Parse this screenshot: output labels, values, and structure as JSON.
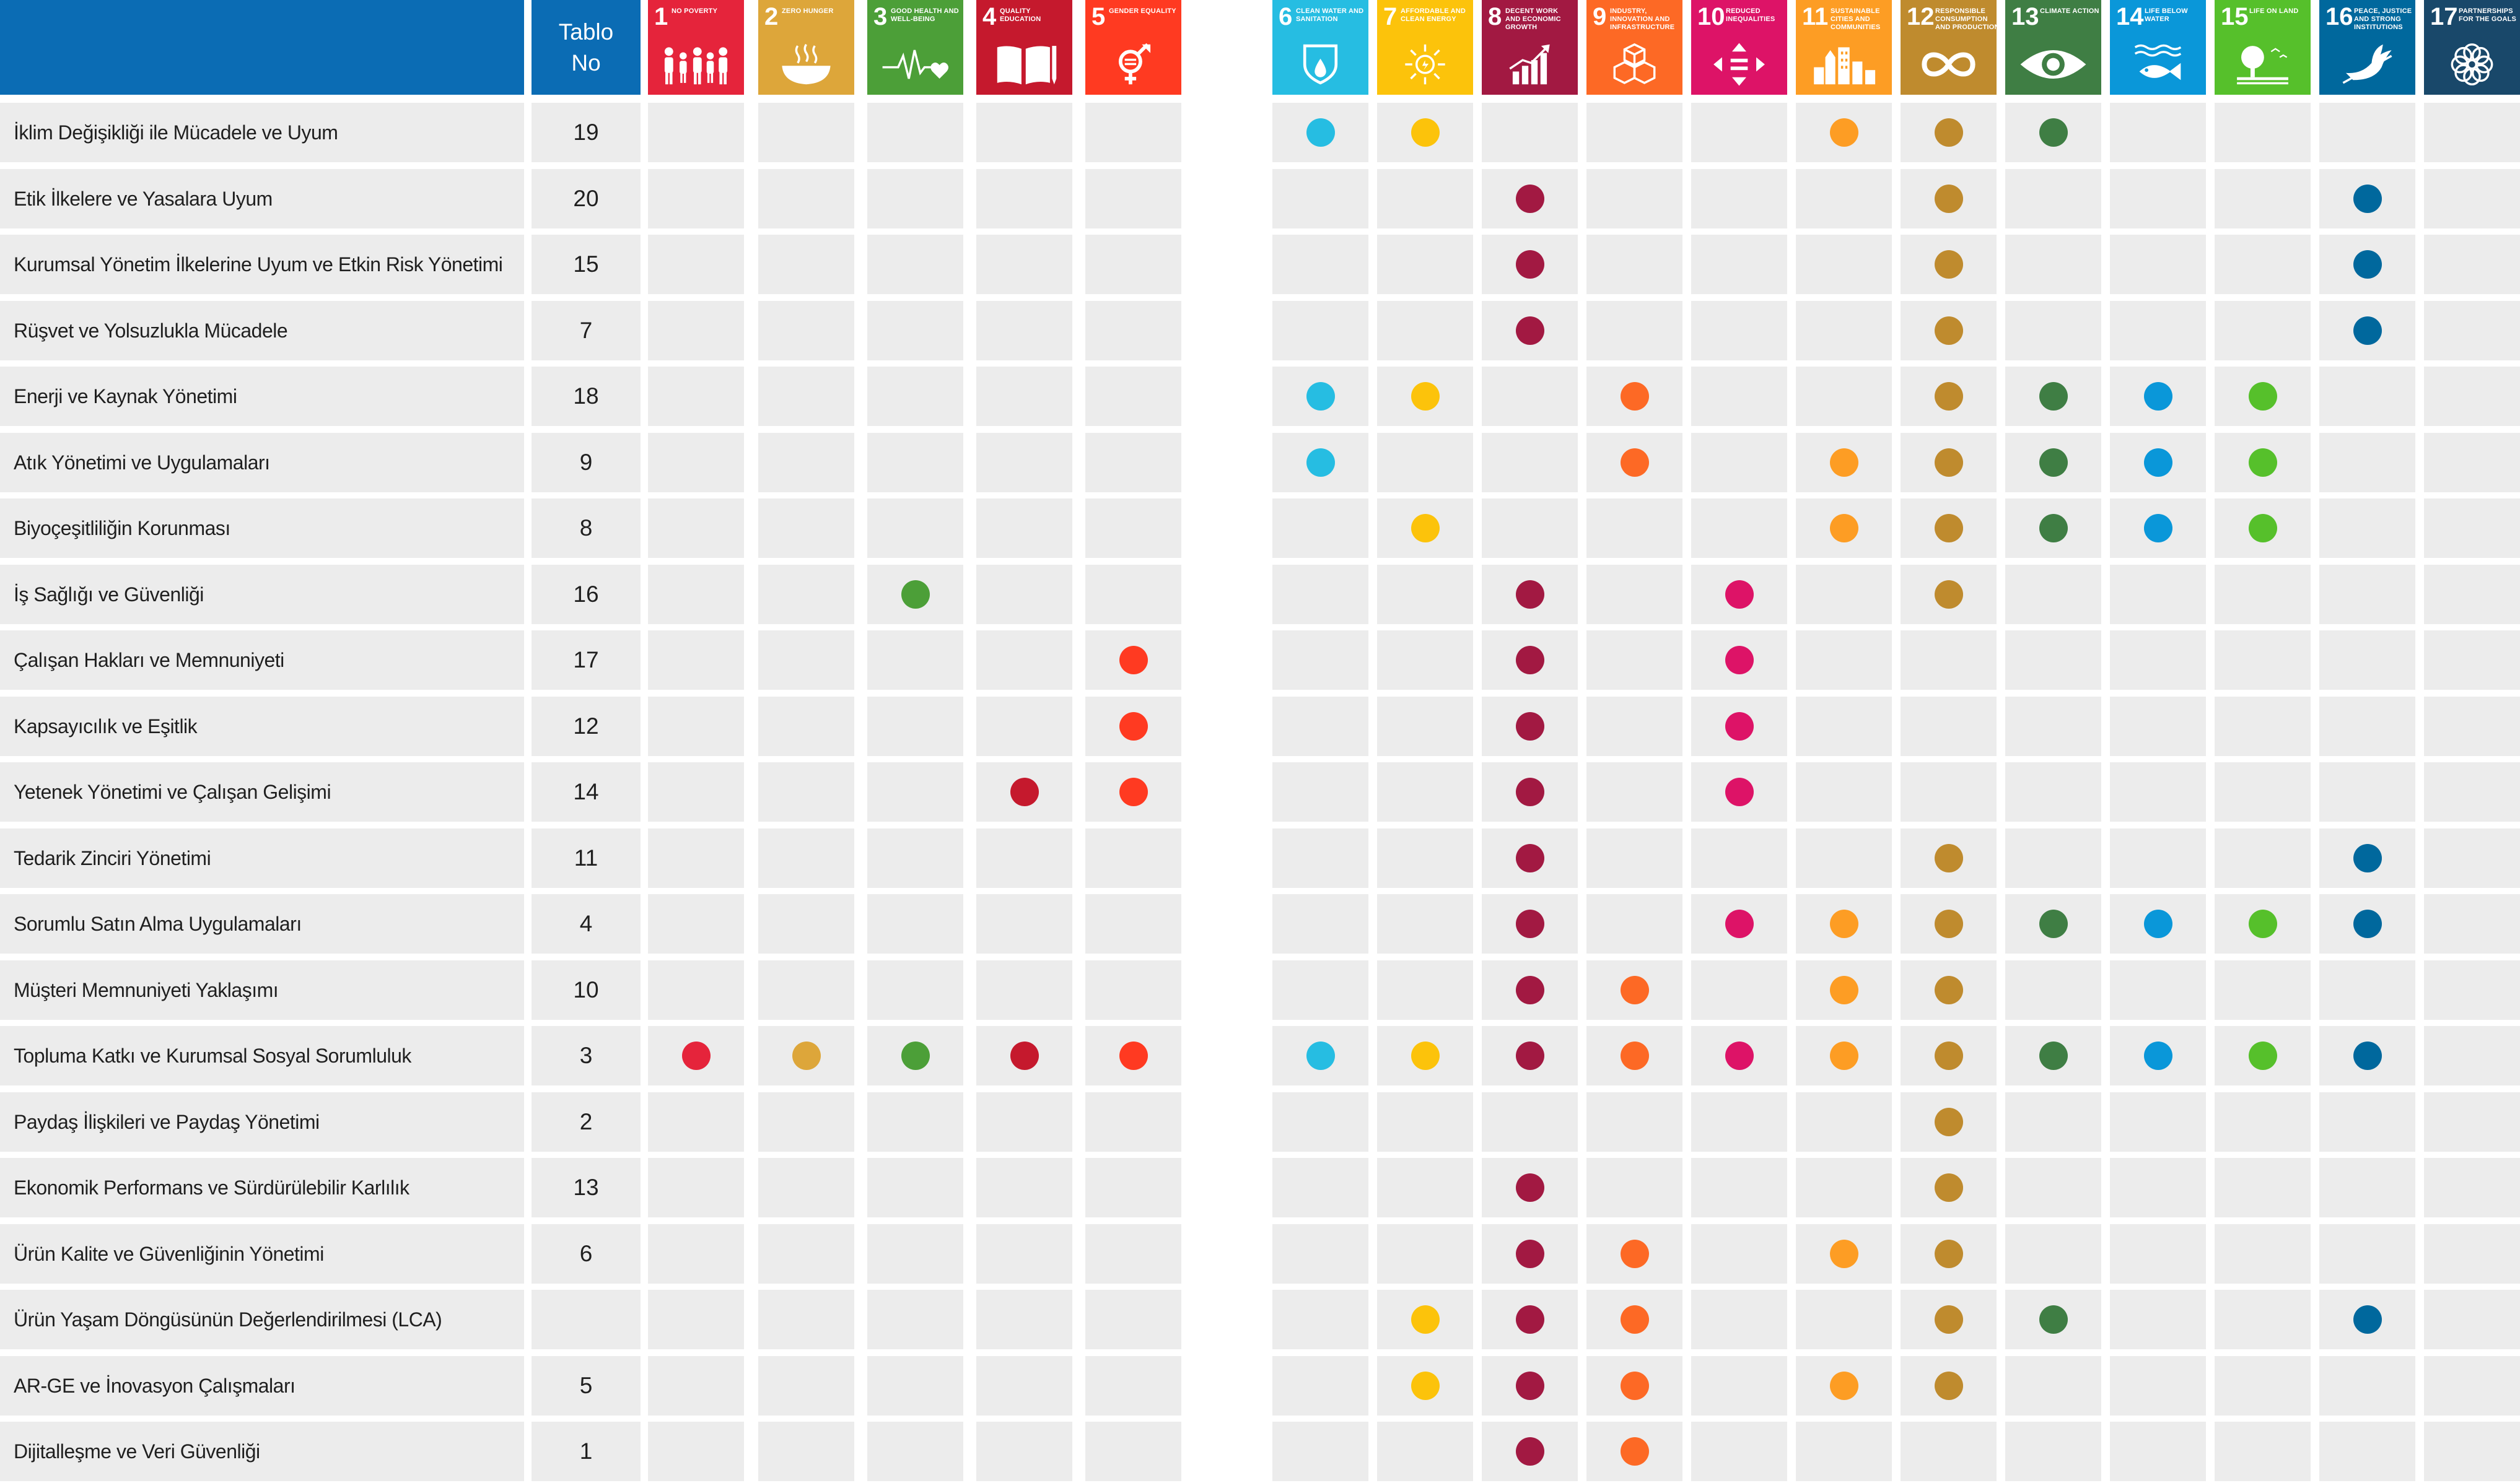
{
  "header": {
    "table_no_line1": "Tablo",
    "table_no_line2": "No"
  },
  "sdgs": [
    {
      "num": "1",
      "title": "No Poverty",
      "color": "#e5243b",
      "icon": "people-icon"
    },
    {
      "num": "2",
      "title": "Zero Hunger",
      "color": "#dda63a",
      "icon": "bowl-icon"
    },
    {
      "num": "3",
      "title": "Good Health and Well-Being",
      "color": "#4c9f38",
      "icon": "heartbeat-icon"
    },
    {
      "num": "4",
      "title": "Quality Education",
      "color": "#c5192d",
      "icon": "book-icon"
    },
    {
      "num": "5",
      "title": "Gender Equality",
      "color": "#ff3a21",
      "icon": "gender-icon"
    },
    {
      "num": "6",
      "title": "Clean Water and Sanitation",
      "color": "#26bde2",
      "icon": "water-drop-icon"
    },
    {
      "num": "7",
      "title": "Affordable and Clean Energy",
      "color": "#fcc30b",
      "icon": "sun-icon"
    },
    {
      "num": "8",
      "title": "Decent Work and Economic Growth",
      "color": "#a21942",
      "icon": "growth-chart-icon"
    },
    {
      "num": "9",
      "title": "Industry, Innovation and Infrastructure",
      "color": "#fd6925",
      "icon": "cubes-icon"
    },
    {
      "num": "10",
      "title": "Reduced Inequalities",
      "color": "#dd1367",
      "icon": "equal-arrows-icon"
    },
    {
      "num": "11",
      "title": "Sustainable Cities and Communities",
      "color": "#fd9d24",
      "icon": "city-icon"
    },
    {
      "num": "12",
      "title": "Responsible Consumption and Production",
      "color": "#bf8b2e",
      "icon": "infinity-icon"
    },
    {
      "num": "13",
      "title": "Climate Action",
      "color": "#3f7e44",
      "icon": "eye-icon"
    },
    {
      "num": "14",
      "title": "Life Below Water",
      "color": "#0a97d9",
      "icon": "fish-icon"
    },
    {
      "num": "15",
      "title": "Life on Land",
      "color": "#56c02b",
      "icon": "tree-icon"
    },
    {
      "num": "16",
      "title": "Peace, Justice and Strong Institutions",
      "color": "#00689d",
      "icon": "dove-icon"
    },
    {
      "num": "17",
      "title": "Partnerships for the Goals",
      "color": "#19486a",
      "icon": "flower-icon"
    }
  ],
  "rows": [
    {
      "label": "İklim Değişikliği ile Mücadele ve Uyum",
      "table_no": "19",
      "goals": [
        6,
        7,
        11,
        12,
        13
      ]
    },
    {
      "label": "Etik İlkelere ve Yasalara Uyum",
      "table_no": "20",
      "goals": [
        8,
        12,
        16
      ]
    },
    {
      "label": "Kurumsal Yönetim İlkelerine Uyum ve Etkin Risk Yönetimi",
      "table_no": "15",
      "goals": [
        8,
        12,
        16
      ]
    },
    {
      "label": "Rüşvet ve Yolsuzlukla Mücadele",
      "table_no": "7",
      "goals": [
        8,
        12,
        16
      ]
    },
    {
      "label": "Enerji ve Kaynak Yönetimi",
      "table_no": "18",
      "goals": [
        6,
        7,
        9,
        12,
        13,
        14,
        15
      ]
    },
    {
      "label": "Atık Yönetimi ve Uygulamaları",
      "table_no": "9",
      "goals": [
        6,
        9,
        11,
        12,
        13,
        14,
        15
      ]
    },
    {
      "label": "Biyoçeşitliliğin Korunması",
      "table_no": "8",
      "goals": [
        7,
        11,
        12,
        13,
        14,
        15
      ]
    },
    {
      "label": "İş Sağlığı ve Güvenliği",
      "table_no": "16",
      "goals": [
        3,
        8,
        10,
        12
      ]
    },
    {
      "label": "Çalışan Hakları ve Memnuniyeti",
      "table_no": "17",
      "goals": [
        5,
        8,
        10
      ]
    },
    {
      "label": "Kapsayıcılık ve Eşitlik",
      "table_no": "12",
      "goals": [
        5,
        8,
        10
      ]
    },
    {
      "label": "Yetenek Yönetimi ve Çalışan Gelişimi",
      "table_no": "14",
      "goals": [
        4,
        5,
        8,
        10
      ]
    },
    {
      "label": "Tedarik Zinciri Yönetimi",
      "table_no": "11",
      "goals": [
        8,
        12,
        16
      ]
    },
    {
      "label": "Sorumlu Satın Alma Uygulamaları",
      "table_no": "4",
      "goals": [
        8,
        10,
        11,
        12,
        13,
        14,
        15,
        16
      ]
    },
    {
      "label": "Müşteri Memnuniyeti Yaklaşımı",
      "table_no": "10",
      "goals": [
        8,
        9,
        11,
        12
      ]
    },
    {
      "label": "Topluma Katkı ve Kurumsal Sosyal Sorumluluk",
      "table_no": "3",
      "goals": [
        1,
        2,
        3,
        4,
        5,
        6,
        7,
        8,
        9,
        10,
        11,
        12,
        13,
        14,
        15,
        16
      ]
    },
    {
      "label": "Paydaş İlişkileri ve Paydaş Yönetimi",
      "table_no": "2",
      "goals": [
        12
      ]
    },
    {
      "label": "Ekonomik Performans ve Sürdürülebilir Karlılık",
      "table_no": "13",
      "goals": [
        8,
        12
      ]
    },
    {
      "label": "Ürün Kalite ve Güvenliğinin Yönetimi",
      "table_no": "6",
      "goals": [
        8,
        9,
        11,
        12
      ]
    },
    {
      "label": "Ürün Yaşam Döngüsünün Değerlendirilmesi (LCA)",
      "table_no": "",
      "goals": [
        7,
        8,
        9,
        12,
        13,
        16
      ]
    },
    {
      "label": "AR-GE ve İnovasyon Çalışmaları",
      "table_no": "5",
      "goals": [
        7,
        8,
        9,
        11,
        12
      ]
    },
    {
      "label": "Dijitalleşme ve Veri Güvenliği",
      "table_no": "1",
      "goals": [
        8,
        9
      ]
    }
  ]
}
